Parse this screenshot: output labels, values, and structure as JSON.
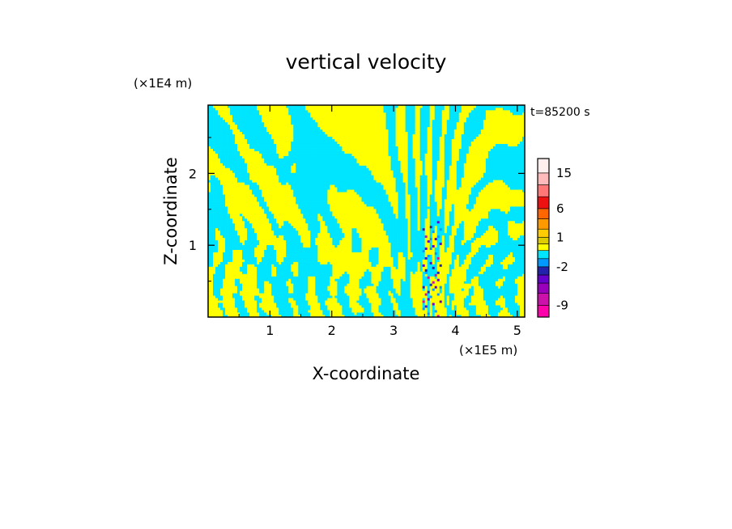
{
  "chart_data": {
    "type": "heatmap",
    "title": "vertical velocity",
    "xlabel": "X-coordinate",
    "ylabel": "Z-coordinate",
    "x_unit": "(×1E5 m)",
    "y_unit": "(×1E4 m)",
    "time_label": "t=85200 s",
    "xlim": [
      0,
      5.12
    ],
    "ylim": [
      0,
      2.95
    ],
    "x_ticks": [
      1,
      2,
      3,
      4,
      5
    ],
    "y_ticks": [
      1,
      2
    ],
    "colors": {
      "positive_small": "#ffff00",
      "negative_small": "#00e5ff"
    },
    "colorbar": {
      "tick_labels": [
        "15",
        "6",
        "1",
        "-2",
        "-9"
      ],
      "levels": [
        {
          "min": -12,
          "max": -9,
          "color": "#ff00aa"
        },
        {
          "min": -9,
          "max": -6,
          "color": "#cc11aa"
        },
        {
          "min": -6,
          "max": -4,
          "color": "#9900bb"
        },
        {
          "min": -4,
          "max": -3,
          "color": "#6600cc"
        },
        {
          "min": -3,
          "max": -2,
          "color": "#2222aa"
        },
        {
          "min": -2,
          "max": -1,
          "color": "#0099ff"
        },
        {
          "min": -1,
          "max": 0,
          "color": "#00e5ff"
        },
        {
          "min": 0,
          "max": 0.5,
          "color": "#ffff00"
        },
        {
          "min": 0.5,
          "max": 1,
          "color": "#ddcc00"
        },
        {
          "min": 1,
          "max": 2,
          "color": "#ffcc00"
        },
        {
          "min": 2,
          "max": 4,
          "color": "#ff9900"
        },
        {
          "min": 4,
          "max": 6,
          "color": "#ff6600"
        },
        {
          "min": 6,
          "max": 9,
          "color": "#ee1111"
        },
        {
          "min": 9,
          "max": 12,
          "color": "#ff7777"
        },
        {
          "min": 12,
          "max": 15,
          "color": "#ffbbbb"
        },
        {
          "min": 15,
          "max": 20,
          "color": "#ffeeee"
        }
      ]
    }
  }
}
